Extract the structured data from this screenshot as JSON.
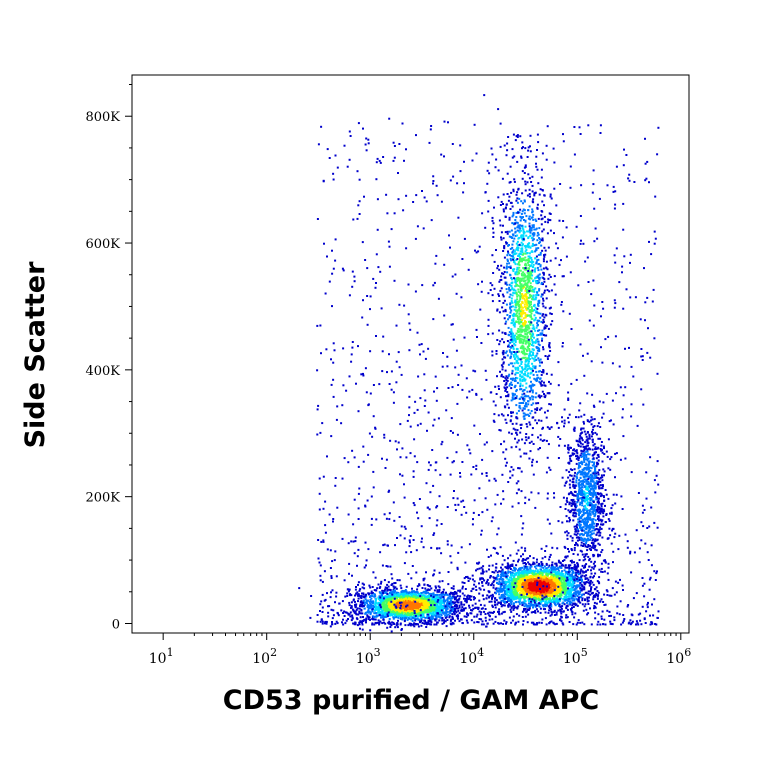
{
  "chart_data": {
    "type": "scatter",
    "style": "density dot plot (flow cytometry)",
    "xlabel": "CD53 purified / GAM APC",
    "ylabel": "Side Scatter",
    "x_scale": "log",
    "xlim": [
      5,
      1200000
    ],
    "ylim": [
      -15000,
      865000
    ],
    "x_ticks": [
      {
        "value": 10,
        "base": "10",
        "exp": "1"
      },
      {
        "value": 100,
        "base": "10",
        "exp": "2"
      },
      {
        "value": 1000,
        "base": "10",
        "exp": "3"
      },
      {
        "value": 10000,
        "base": "10",
        "exp": "4"
      },
      {
        "value": 100000,
        "base": "10",
        "exp": "5"
      },
      {
        "value": 1000000,
        "base": "10",
        "exp": "6"
      }
    ],
    "y_ticks": [
      {
        "value": 0,
        "label": "0"
      },
      {
        "value": 200000,
        "label": "200K"
      },
      {
        "value": 400000,
        "label": "400K"
      },
      {
        "value": 600000,
        "label": "600K"
      },
      {
        "value": 800000,
        "label": "800K"
      }
    ],
    "grid": false,
    "color_scale": [
      "#0000cc",
      "#0077ff",
      "#00ddff",
      "#44ff66",
      "#ffee00",
      "#ff7700",
      "#ee0000"
    ],
    "populations": [
      {
        "name": "",
        "x_center": 2300,
        "y_center": 30000,
        "x_spread_log10": 0.22,
        "y_spread": 13000,
        "peak_density": 0.85
      },
      {
        "name": "",
        "x_center": 42000,
        "y_center": 60000,
        "x_spread_log10": 0.2,
        "y_spread": 17000,
        "peak_density": 1.0
      },
      {
        "name": "",
        "x_center": 30000,
        "y_center": 500000,
        "x_spread_log10": 0.1,
        "y_spread": 105000,
        "peak_density": 0.6
      },
      {
        "name": "",
        "x_center": 120000,
        "y_center": 200000,
        "x_spread_log10": 0.08,
        "y_spread": 60000,
        "peak_density": 0.3
      }
    ]
  }
}
